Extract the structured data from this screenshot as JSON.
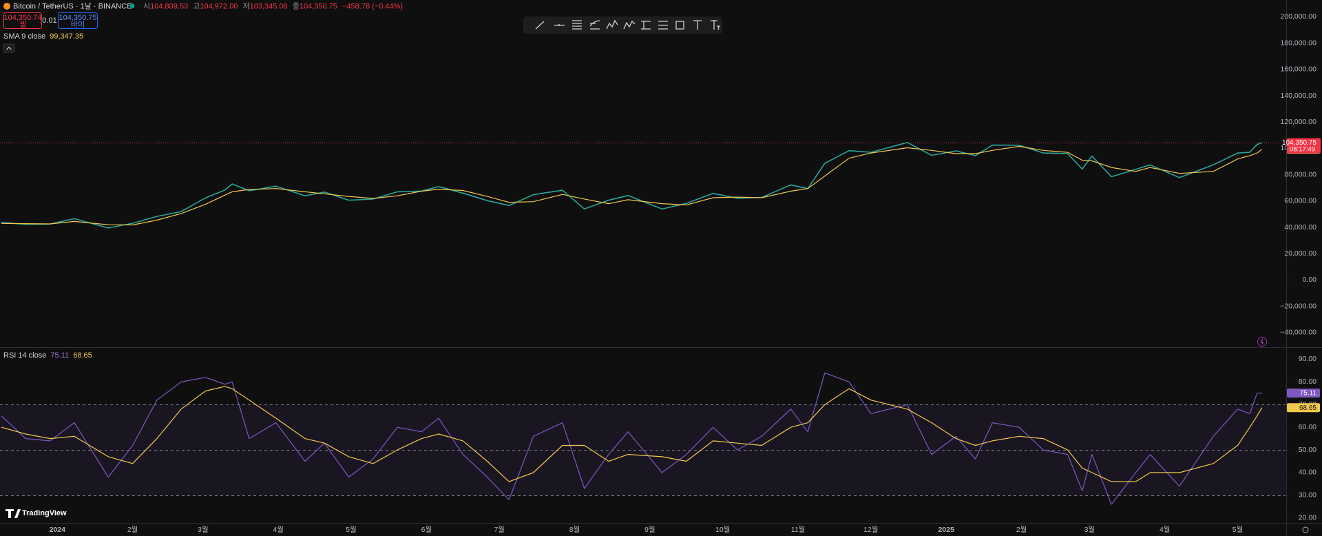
{
  "header": {
    "title": "Bitcoin / TetherUS · 1날 · BINANCE",
    "ohlc": [
      {
        "label": "시",
        "value": "104,809.53"
      },
      {
        "label": "고",
        "value": "104,972.00"
      },
      {
        "label": "저",
        "value": "103,345.06"
      },
      {
        "label": "종",
        "value": "104,350.75"
      }
    ],
    "change": "−458.78 (−0.44%)",
    "sell": {
      "price": "104,350.74",
      "label": "셀"
    },
    "spread": "0.01",
    "buy": {
      "price": "104,350.75",
      "label": "바이"
    },
    "logo": "TradingView"
  },
  "chart_data": [
    {
      "type": "line",
      "x": [
        -23,
        -13,
        -3,
        7,
        21,
        31,
        41,
        51,
        61,
        69,
        72,
        79,
        90,
        102,
        110,
        120,
        130,
        140,
        150,
        157,
        167,
        177,
        186,
        196,
        208,
        217,
        227,
        235,
        249,
        259,
        270,
        280,
        290,
        302,
        309,
        316,
        326,
        335,
        350,
        360,
        370,
        378,
        385,
        396,
        406,
        416,
        422,
        426,
        434,
        444,
        450,
        462,
        476,
        486,
        491,
        494,
        496
      ],
      "series": [
        {
          "color": "#26a69a",
          "values": [
            43700,
            42300,
            42500,
            46600,
            39500,
            43100,
            48300,
            52000,
            62400,
            68300,
            73000,
            67800,
            71300,
            64000,
            66800,
            60600,
            61500,
            67000,
            67600,
            71000,
            66000,
            60300,
            56600,
            64800,
            68200,
            54000,
            60600,
            64200,
            53900,
            58200,
            65800,
            62100,
            62700,
            72300,
            69400,
            88700,
            98300,
            97000,
            104500,
            94700,
            98100,
            94500,
            102500,
            102400,
            96500,
            96100,
            84300,
            94200,
            78500,
            84100,
            87500,
            77800,
            87500,
            96500,
            97000,
            103000,
            104350.75
          ]
        },
        {
          "name": "SMA 9 close",
          "color": "#f2c94c",
          "last_value_label": "99,347.35",
          "values": [
            43000,
            42800,
            42600,
            44500,
            42000,
            41800,
            45500,
            50500,
            57500,
            64500,
            67000,
            68800,
            69500,
            67000,
            65500,
            63500,
            62000,
            64000,
            67500,
            69000,
            68000,
            63500,
            59000,
            59500,
            65000,
            61500,
            58000,
            61000,
            58000,
            57000,
            62500,
            63000,
            62500,
            67500,
            69500,
            79000,
            92500,
            96500,
            100500,
            98500,
            96000,
            96000,
            98500,
            101500,
            98500,
            97000,
            91000,
            90500,
            85500,
            82500,
            85500,
            81000,
            82500,
            92000,
            94500,
            96500,
            99347.35
          ]
        }
      ],
      "price_badge": {
        "price": "104,350.75",
        "countdown": "08:17:49"
      },
      "xlim": [
        -23.6,
        505.7
      ],
      "ylim": [
        -50600,
        212800
      ],
      "yticks": [
        {
          "value": 200000,
          "label": "200,000.00"
        },
        {
          "value": 180000,
          "label": "180,000.00"
        },
        {
          "value": 160000,
          "label": "160,000.00"
        },
        {
          "value": 140000,
          "label": "140,000.00"
        },
        {
          "value": 120000,
          "label": "120,000.00"
        },
        {
          "value": 100000,
          "label": "100,000.00"
        },
        {
          "value": 80000,
          "label": "80,000.00"
        },
        {
          "value": 60000,
          "label": "60,000.00"
        },
        {
          "value": 40000,
          "label": "40,000.00"
        },
        {
          "value": 20000,
          "label": "20,000.00"
        },
        {
          "value": 0,
          "label": "0.00"
        },
        {
          "value": -20000,
          "label": "−20,000.00"
        },
        {
          "value": -40000,
          "label": "−40,000.00"
        }
      ],
      "grid": false
    },
    {
      "type": "line",
      "x": [
        -23,
        -13,
        -3,
        7,
        21,
        31,
        41,
        51,
        61,
        69,
        72,
        79,
        90,
        102,
        110,
        120,
        130,
        140,
        150,
        157,
        167,
        177,
        186,
        196,
        208,
        217,
        227,
        235,
        249,
        259,
        270,
        280,
        290,
        302,
        309,
        316,
        326,
        335,
        350,
        360,
        370,
        378,
        385,
        396,
        406,
        416,
        422,
        426,
        434,
        444,
        450,
        462,
        476,
        486,
        491,
        494,
        496
      ],
      "series": [
        {
          "name": "RSI 14 close",
          "color": "#7e57c2",
          "last_value_label": "75.11",
          "values": [
            65,
            55,
            54,
            62,
            38,
            52,
            72,
            80,
            82,
            79,
            80,
            55,
            62,
            45,
            53,
            38,
            46,
            60,
            58,
            64,
            48,
            38,
            28,
            56,
            62,
            33,
            48,
            58,
            40,
            48,
            60,
            50,
            56,
            68,
            58,
            84,
            80,
            66,
            70,
            48,
            56,
            46,
            62,
            60,
            50,
            48,
            32,
            48,
            26,
            40,
            48,
            34,
            56,
            68,
            66,
            75,
            75.11
          ]
        },
        {
          "color": "#f2c94c",
          "last_value_label": "68.65",
          "values": [
            60,
            57,
            55,
            56,
            47,
            44,
            55,
            68,
            76,
            78,
            77,
            72,
            64,
            55,
            53,
            47,
            44,
            50,
            55,
            57,
            54,
            45,
            36,
            40,
            52,
            52,
            45,
            48,
            47,
            45,
            54,
            53,
            52,
            60,
            62,
            70,
            77,
            72,
            68,
            62,
            55,
            52,
            54,
            56,
            55,
            50,
            42,
            40,
            36,
            36,
            40,
            40,
            44,
            52,
            60,
            65,
            68.65
          ]
        }
      ],
      "bands": [
        70,
        50,
        30
      ],
      "xlim": [
        -23.6,
        505.7
      ],
      "ylim": [
        17.8,
        94.7
      ],
      "yticks": [
        {
          "value": 90,
          "label": "90.00"
        },
        {
          "value": 80,
          "label": "80.00"
        },
        {
          "value": 70,
          "label": "70.00"
        },
        {
          "value": 60,
          "label": "60.00"
        },
        {
          "value": 50,
          "label": "50.00"
        },
        {
          "value": 40,
          "label": "40.00"
        },
        {
          "value": 30,
          "label": "30.00"
        },
        {
          "value": 20,
          "label": "20.00"
        }
      ],
      "xticks": [
        {
          "value": 0,
          "label": "2024"
        },
        {
          "value": 31,
          "label": "2월"
        },
        {
          "value": 60,
          "label": "3월"
        },
        {
          "value": 91,
          "label": "4월"
        },
        {
          "value": 121,
          "label": "5월"
        },
        {
          "value": 152,
          "label": "6월"
        },
        {
          "value": 182,
          "label": "7월"
        },
        {
          "value": 213,
          "label": "8월"
        },
        {
          "value": 244,
          "label": "9월"
        },
        {
          "value": 274,
          "label": "10월"
        },
        {
          "value": 305,
          "label": "11월"
        },
        {
          "value": 335,
          "label": "12월"
        },
        {
          "value": 366,
          "label": "2025"
        },
        {
          "value": 397,
          "label": "2월"
        },
        {
          "value": 425,
          "label": "3월"
        },
        {
          "value": 456,
          "label": "4월"
        },
        {
          "value": 486,
          "label": "5월"
        }
      ],
      "grid": false
    }
  ]
}
